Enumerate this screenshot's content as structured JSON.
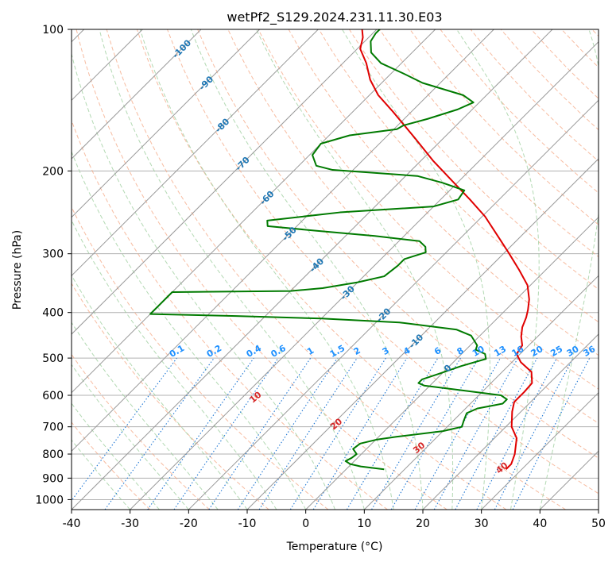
{
  "chart_data": {
    "type": "skew-t",
    "title": "wetPf2_S129.2024.231.11.30.E03",
    "xlabel": "Temperature (°C)",
    "ylabel": "Pressure (hPa)",
    "xlim": [
      -40,
      50
    ],
    "ylim": [
      1050,
      100
    ],
    "y_scale": "log",
    "grid": true,
    "x_ticks": [
      -40,
      -30,
      -20,
      -10,
      0,
      10,
      20,
      30,
      40,
      50
    ],
    "y_ticks": [
      1000,
      900,
      800,
      700,
      600,
      500,
      400,
      300,
      200,
      100
    ],
    "colors": {
      "temperature": "#e00000",
      "dewpoint": "#007a00",
      "isotherm": "#999999",
      "dry_adiabat": "#f4a582",
      "moist_adiabat": "#99cc99",
      "mixing_ratio": "#1f77d4",
      "dry_adiabat_label": "#d62728",
      "isotherm_label": "#1f77b4",
      "mixing_ratio_label": "#1e90ff"
    },
    "isotherm_labels": [
      {
        "t": -100,
        "p": 110,
        "text": "-100"
      },
      {
        "t": -90,
        "p": 130,
        "text": "-90"
      },
      {
        "t": -80,
        "p": 160,
        "text": "-80"
      },
      {
        "t": -70,
        "p": 193,
        "text": "-70"
      },
      {
        "t": -60,
        "p": 228,
        "text": "-60"
      },
      {
        "t": -50,
        "p": 272,
        "text": "-50"
      },
      {
        "t": -40,
        "p": 317,
        "text": "-40"
      },
      {
        "t": -30,
        "p": 363,
        "text": "-30"
      },
      {
        "t": -20,
        "p": 405,
        "text": "-20"
      },
      {
        "t": -10,
        "p": 460,
        "text": "-10"
      },
      {
        "t": 0,
        "p": 525,
        "text": "0"
      }
    ],
    "dry_adiabat_labels": [
      {
        "theta": 10,
        "p": 605,
        "text": "10"
      },
      {
        "theta": 20,
        "p": 690,
        "text": "20"
      },
      {
        "theta": 30,
        "p": 775,
        "text": "30"
      },
      {
        "theta": 40,
        "p": 855,
        "text": "40"
      }
    ],
    "mixing_ratio_labels": [
      "0.1",
      "0.2",
      "0.4",
      "0.6",
      "1",
      "1.5",
      "2",
      "3",
      "4",
      "6",
      "8",
      "10",
      "13",
      "16",
      "20",
      "25",
      "30",
      "36"
    ],
    "mixing_ratio_label_pressure": 495,
    "series": [
      {
        "kind": "temperature",
        "points": [
          {
            "p": 862,
            "t": 27.3
          },
          {
            "p": 840,
            "t": 27.3
          },
          {
            "p": 800,
            "t": 26.2
          },
          {
            "p": 740,
            "t": 23.8
          },
          {
            "p": 700,
            "t": 21.0
          },
          {
            "p": 650,
            "t": 18.5
          },
          {
            "p": 620,
            "t": 17.2
          },
          {
            "p": 590,
            "t": 17.2
          },
          {
            "p": 565,
            "t": 17.0
          },
          {
            "p": 535,
            "t": 15.0
          },
          {
            "p": 510,
            "t": 11.5
          },
          {
            "p": 490,
            "t": 9.4
          },
          {
            "p": 470,
            "t": 8.9
          },
          {
            "p": 450,
            "t": 7.2
          },
          {
            "p": 430,
            "t": 5.8
          },
          {
            "p": 410,
            "t": 4.8
          },
          {
            "p": 395,
            "t": 3.8
          },
          {
            "p": 375,
            "t": 2.2
          },
          {
            "p": 350,
            "t": -0.5
          },
          {
            "p": 325,
            "t": -4.5
          },
          {
            "p": 300,
            "t": -9.0
          },
          {
            "p": 275,
            "t": -14.0
          },
          {
            "p": 250,
            "t": -19.5
          },
          {
            "p": 230,
            "t": -25.0
          },
          {
            "p": 210,
            "t": -31.2
          },
          {
            "p": 190,
            "t": -38.0
          },
          {
            "p": 170,
            "t": -45.0
          },
          {
            "p": 150,
            "t": -53.0
          },
          {
            "p": 138,
            "t": -58.5
          },
          {
            "p": 128,
            "t": -62.5
          },
          {
            "p": 118,
            "t": -66.0
          },
          {
            "p": 110,
            "t": -69.5
          },
          {
            "p": 104,
            "t": -71.0
          },
          {
            "p": 100,
            "t": -72.5
          }
        ]
      },
      {
        "kind": "dewpoint",
        "points": [
          {
            "p": 862,
            "t": 6.5
          },
          {
            "p": 850,
            "t": 2.0
          },
          {
            "p": 840,
            "t": -0.2
          },
          {
            "p": 828,
            "t": -1.5
          },
          {
            "p": 815,
            "t": -1.0
          },
          {
            "p": 800,
            "t": -0.8
          },
          {
            "p": 780,
            "t": -2.3
          },
          {
            "p": 760,
            "t": -2.0
          },
          {
            "p": 745,
            "t": 0.2
          },
          {
            "p": 735,
            "t": 3.0
          },
          {
            "p": 715,
            "t": 10.0
          },
          {
            "p": 700,
            "t": 12.5
          },
          {
            "p": 680,
            "t": 11.8
          },
          {
            "p": 655,
            "t": 11.0
          },
          {
            "p": 640,
            "t": 12.0
          },
          {
            "p": 625,
            "t": 15.5
          },
          {
            "p": 612,
            "t": 15.5
          },
          {
            "p": 600,
            "t": 13.8
          },
          {
            "p": 585,
            "t": 6.0
          },
          {
            "p": 572,
            "t": -1.0
          },
          {
            "p": 565,
            "t": -2.4
          },
          {
            "p": 555,
            "t": -2.4
          },
          {
            "p": 540,
            "t": -0.5
          },
          {
            "p": 520,
            "t": 2.0
          },
          {
            "p": 502,
            "t": 5.0
          },
          {
            "p": 490,
            "t": 4.0
          },
          {
            "p": 480,
            "t": 1.7
          },
          {
            "p": 470,
            "t": 1.2
          },
          {
            "p": 460,
            "t": 0.0
          },
          {
            "p": 448,
            "t": -1.5
          },
          {
            "p": 435,
            "t": -5.0
          },
          {
            "p": 420,
            "t": -16.0
          },
          {
            "p": 412,
            "t": -30.0
          },
          {
            "p": 407,
            "t": -45.0
          },
          {
            "p": 403,
            "t": -60.0
          },
          {
            "p": 362,
            "t": -60.0
          },
          {
            "p": 360,
            "t": -40.0
          },
          {
            "p": 355,
            "t": -35.0
          },
          {
            "p": 345,
            "t": -30.0
          },
          {
            "p": 335,
            "t": -26.5
          },
          {
            "p": 318,
            "t": -26.0
          },
          {
            "p": 308,
            "t": -26.0
          },
          {
            "p": 298,
            "t": -23.5
          },
          {
            "p": 290,
            "t": -24.5
          },
          {
            "p": 282,
            "t": -26.5
          },
          {
            "p": 275,
            "t": -35.0
          },
          {
            "p": 268,
            "t": -46.0
          },
          {
            "p": 262,
            "t": -55.0
          },
          {
            "p": 255,
            "t": -56.0
          },
          {
            "p": 245,
            "t": -45.0
          },
          {
            "p": 238,
            "t": -30.0
          },
          {
            "p": 230,
            "t": -27.0
          },
          {
            "p": 220,
            "t": -27.5
          },
          {
            "p": 212,
            "t": -32.5
          },
          {
            "p": 205,
            "t": -38.0
          },
          {
            "p": 199,
            "t": -53.5
          },
          {
            "p": 195,
            "t": -57.0
          },
          {
            "p": 185,
            "t": -59.5
          },
          {
            "p": 175,
            "t": -60.0
          },
          {
            "p": 168,
            "t": -56.5
          },
          {
            "p": 163,
            "t": -49.5
          },
          {
            "p": 160,
            "t": -49.0
          },
          {
            "p": 155,
            "t": -46.0
          },
          {
            "p": 148,
            "t": -42.5
          },
          {
            "p": 143,
            "t": -41.0
          },
          {
            "p": 138,
            "t": -44.0
          },
          {
            "p": 130,
            "t": -53.0
          },
          {
            "p": 124,
            "t": -58.0
          },
          {
            "p": 118,
            "t": -63.5
          },
          {
            "p": 112,
            "t": -67.0
          },
          {
            "p": 106,
            "t": -69.0
          },
          {
            "p": 102,
            "t": -69.5
          },
          {
            "p": 100,
            "t": -69.5
          }
        ]
      }
    ]
  }
}
